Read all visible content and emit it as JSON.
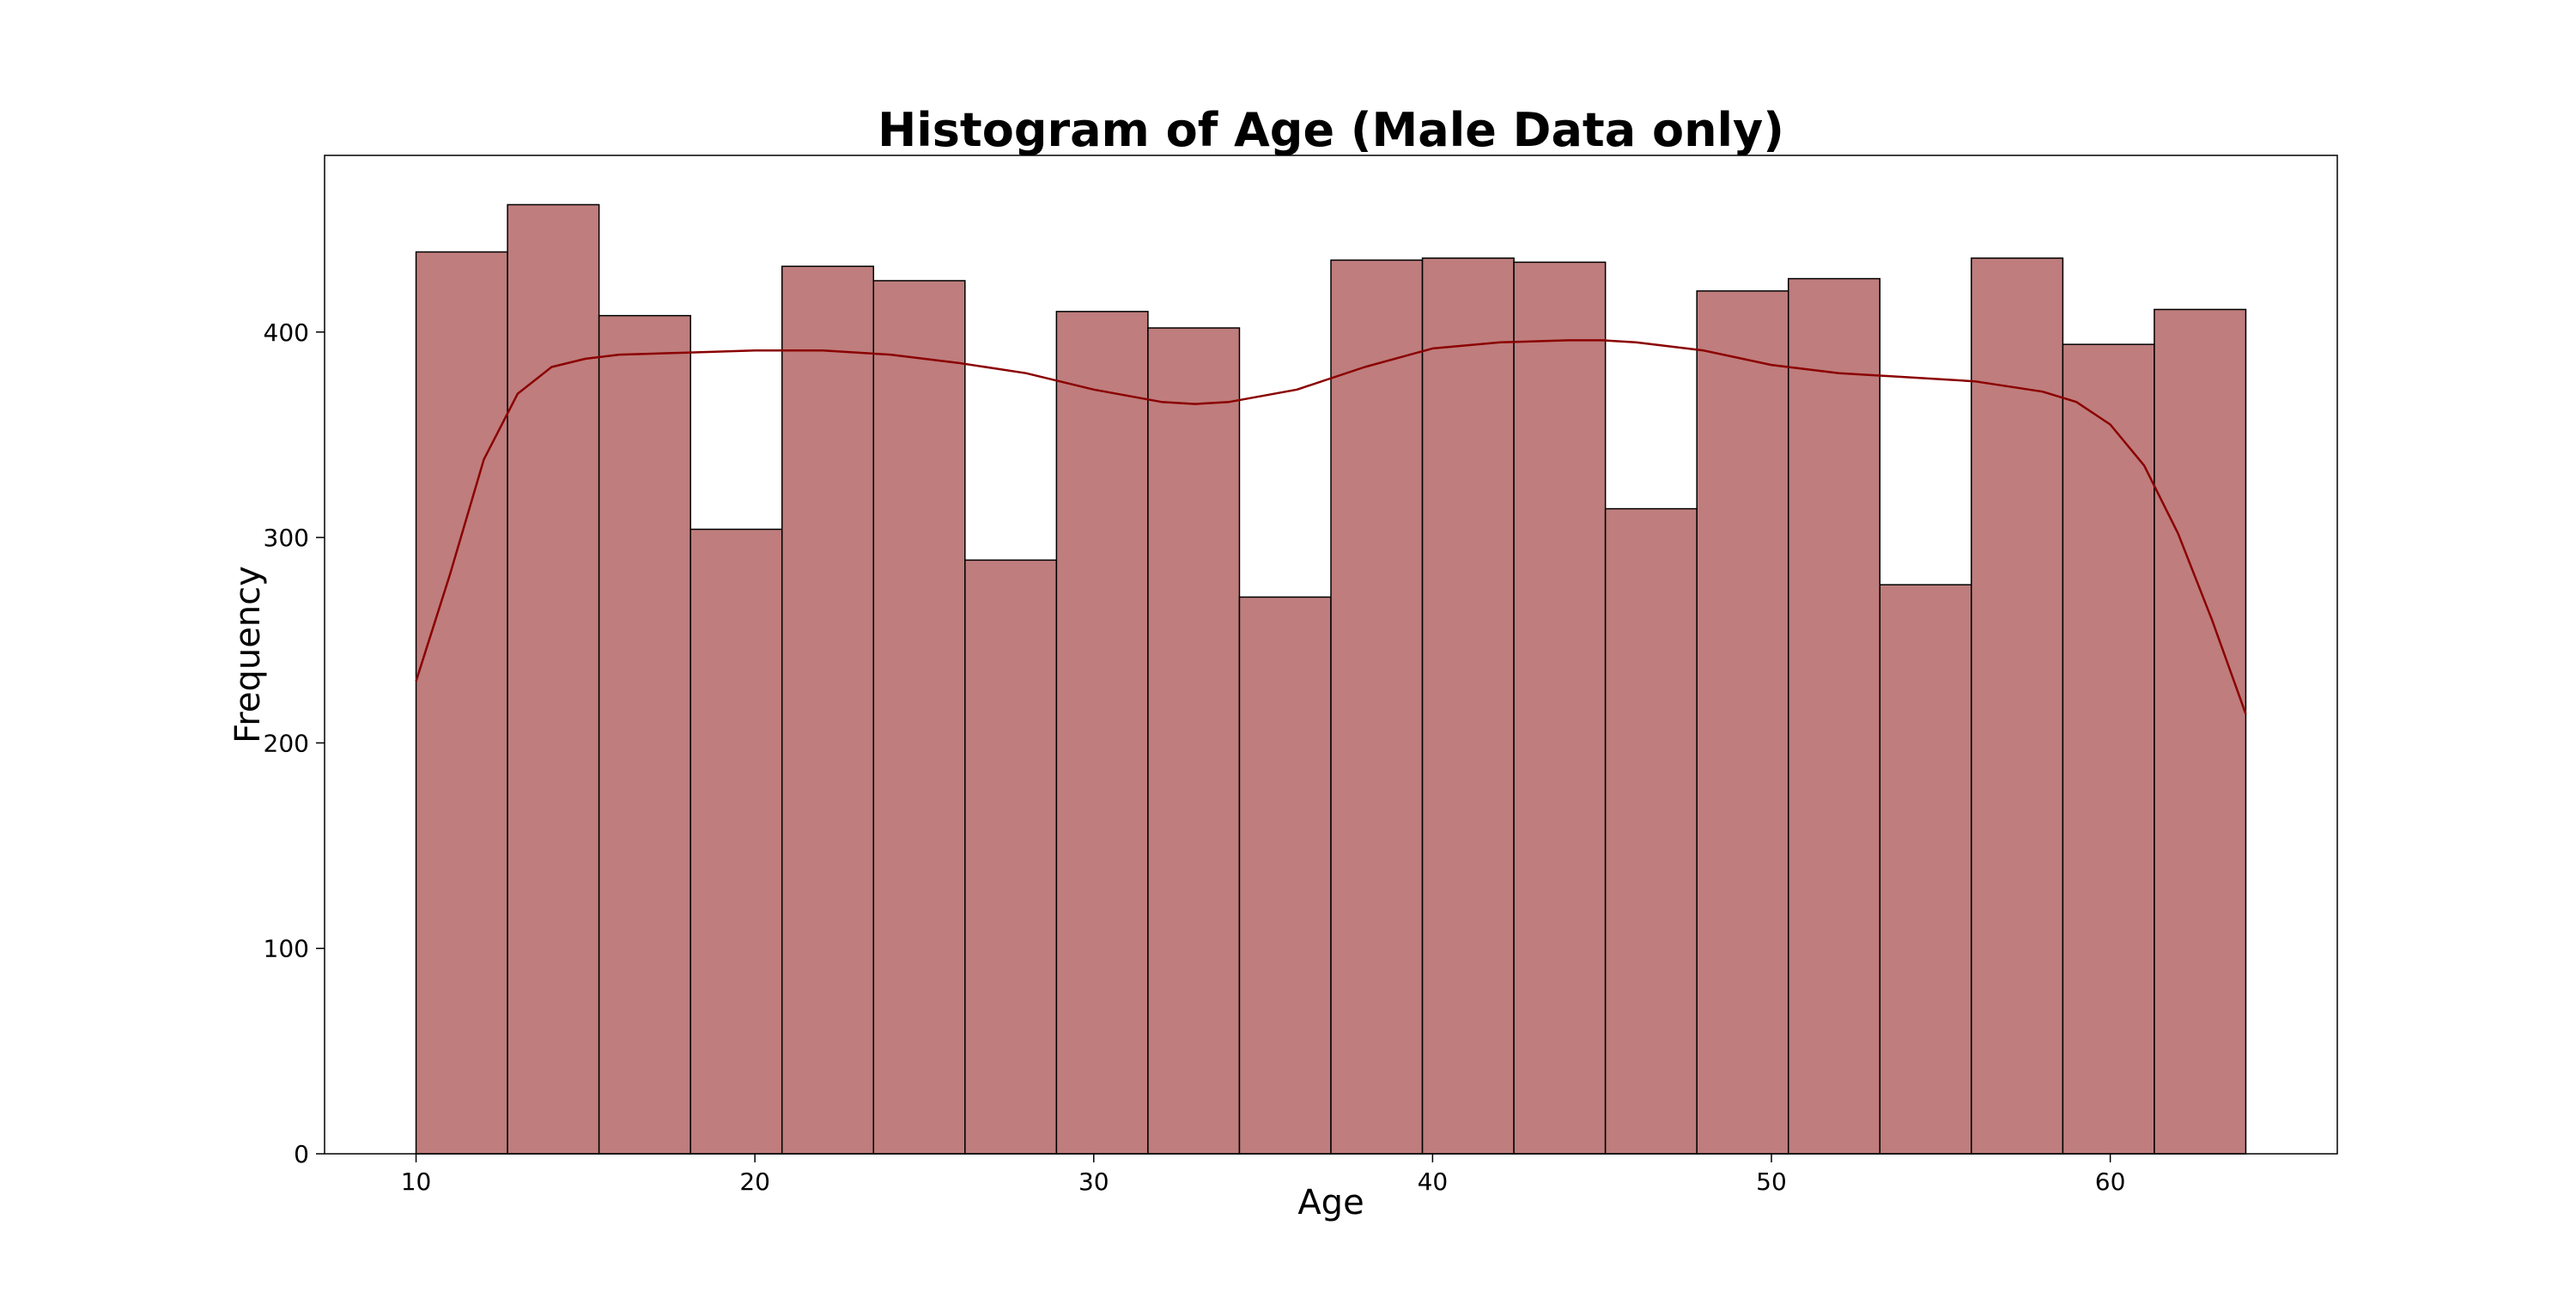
{
  "chart_data": {
    "type": "bar",
    "title": "Histogram of Age (Male Data only)",
    "xlabel": "Age",
    "ylabel": "Frequency",
    "xlim": [
      7.3,
      66.7
    ],
    "ylim": [
      0,
      486
    ],
    "x_ticks": [
      10,
      20,
      30,
      40,
      50,
      60
    ],
    "y_ticks": [
      0,
      100,
      200,
      300,
      400
    ],
    "bin_edges": [
      10,
      12.7,
      15.4,
      18.1,
      20.8,
      23.5,
      26.2,
      28.9,
      31.6,
      34.3,
      37.0,
      39.7,
      42.4,
      45.1,
      47.8,
      50.5,
      53.2,
      55.9,
      58.6,
      61.3,
      64.0
    ],
    "values": [
      439,
      462,
      408,
      304,
      432,
      425,
      289,
      410,
      402,
      271,
      435,
      436,
      434,
      314,
      420,
      426,
      277,
      436,
      394,
      411
    ],
    "kde": {
      "x": [
        10,
        11,
        12,
        13,
        14,
        15,
        16,
        18,
        20,
        22,
        24,
        26,
        28,
        30,
        32,
        33,
        34,
        36,
        38,
        40,
        42,
        44,
        45,
        46,
        48,
        50,
        52,
        54,
        56,
        58,
        59,
        60,
        61,
        62,
        63,
        64
      ],
      "y": [
        230,
        282,
        338,
        370,
        383,
        387,
        389,
        390,
        391,
        391,
        389,
        385,
        380,
        372,
        366,
        365,
        366,
        372,
        383,
        392,
        395,
        396,
        396,
        395,
        391,
        384,
        380,
        378,
        376,
        371,
        366,
        355,
        335,
        302,
        260,
        214
      ]
    },
    "grid": false,
    "legend": "none",
    "colors": {
      "bar_fill": "#bf7d7d",
      "bar_edge": "#000000",
      "kde_line": "#8b0000"
    }
  }
}
